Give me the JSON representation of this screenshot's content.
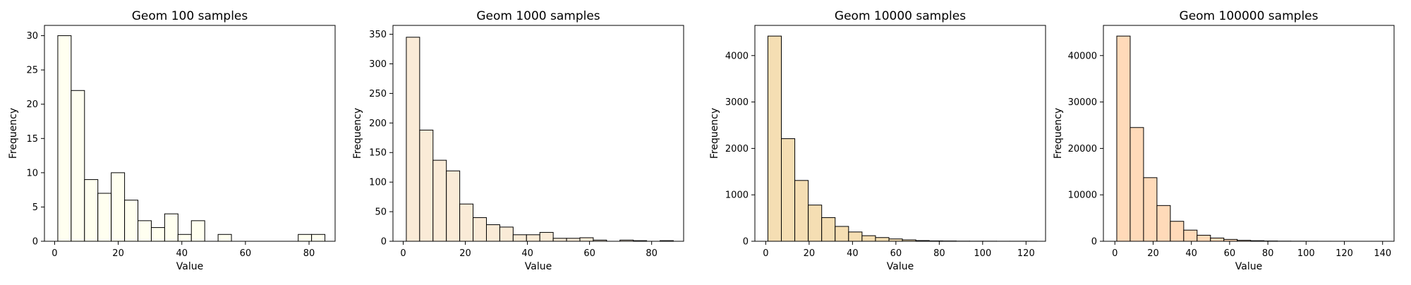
{
  "chart_data": [
    {
      "type": "bar",
      "title": "Geom 100 samples",
      "xlabel": "Value",
      "ylabel": "Frequency",
      "xlim": [
        -3.2,
        88.2
      ],
      "ylim": [
        0,
        31.5
      ],
      "xticks": [
        0,
        20,
        40,
        60,
        80
      ],
      "yticks": [
        0,
        5,
        10,
        15,
        20,
        25,
        30
      ],
      "bin_start": 1,
      "bin_width": 4.2,
      "values": [
        30,
        22,
        9,
        7,
        10,
        6,
        3,
        2,
        4,
        1,
        3,
        0,
        1,
        0,
        0,
        0,
        0,
        0,
        1,
        1
      ],
      "color": "#fffff0",
      "grid": false
    },
    {
      "type": "bar",
      "title": "Geom 1000 samples",
      "xlabel": "Value",
      "ylabel": "Frequency",
      "xlim": [
        -3.3,
        90.3
      ],
      "ylim": [
        0,
        365
      ],
      "xticks": [
        0,
        20,
        40,
        60,
        80
      ],
      "yticks": [
        0,
        50,
        100,
        150,
        200,
        250,
        300,
        350
      ],
      "bin_start": 1,
      "bin_width": 4.3,
      "values": [
        345,
        188,
        137,
        119,
        63,
        40,
        28,
        24,
        11,
        11,
        15,
        5,
        5,
        6,
        2,
        0,
        2,
        1,
        0,
        1
      ],
      "color": "#faebd7",
      "grid": false
    },
    {
      "type": "bar",
      "title": "Geom 10000 samples",
      "xlabel": "Value",
      "ylabel": "Frequency",
      "xlim": [
        -5,
        129
      ],
      "ylim": [
        0,
        4650
      ],
      "xticks": [
        0,
        20,
        40,
        60,
        80,
        100,
        120
      ],
      "yticks": [
        0,
        1000,
        2000,
        3000,
        4000
      ],
      "bin_start": 1,
      "bin_width": 6.2,
      "values": [
        4420,
        2210,
        1310,
        780,
        510,
        320,
        200,
        120,
        80,
        50,
        30,
        15,
        8,
        6,
        3,
        2,
        2,
        1,
        1,
        1
      ],
      "color": "#f5deb3",
      "grid": false
    },
    {
      "type": "bar",
      "title": "Geom 100000 samples",
      "xlabel": "Value",
      "ylabel": "Frequency",
      "xlim": [
        -6,
        146
      ],
      "ylim": [
        0,
        46500
      ],
      "xticks": [
        0,
        20,
        40,
        60,
        80,
        100,
        120,
        140
      ],
      "yticks": [
        0,
        10000,
        20000,
        30000,
        40000
      ],
      "bin_start": 1,
      "bin_width": 7,
      "values": [
        44200,
        24500,
        13700,
        7700,
        4300,
        2400,
        1300,
        700,
        400,
        200,
        120,
        60,
        30,
        20,
        10,
        5,
        3,
        2,
        1,
        1
      ],
      "color": "#ffdab9",
      "grid": false
    }
  ]
}
